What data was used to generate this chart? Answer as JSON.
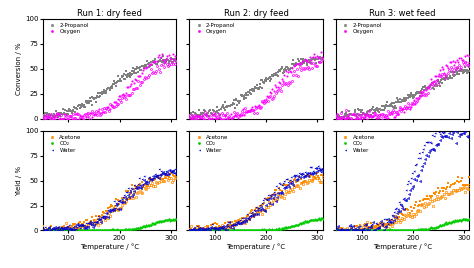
{
  "titles": [
    "Run 1: dry feed",
    "Run 2: dry feed",
    "Run 3: wet feed"
  ],
  "top_ylabel": "Conversion / %",
  "bottom_ylabel": "Yield / %",
  "xlabel": "Temperature / °C",
  "colors": {
    "propanol": "#808080",
    "oxygen": "#ff00ff",
    "acetone": "#ff8c00",
    "co2": "#00cc00",
    "water": "#0000cc"
  },
  "legend_top": [
    "2-Propanol",
    "Oxygen"
  ],
  "legend_bottom": [
    "Acetone",
    "CO₂",
    "Water"
  ],
  "yticks_top": [
    0,
    25,
    50,
    75,
    100
  ],
  "yticks_bottom": [
    0,
    25,
    50,
    75,
    100
  ],
  "xticks": [
    100,
    200,
    300
  ]
}
